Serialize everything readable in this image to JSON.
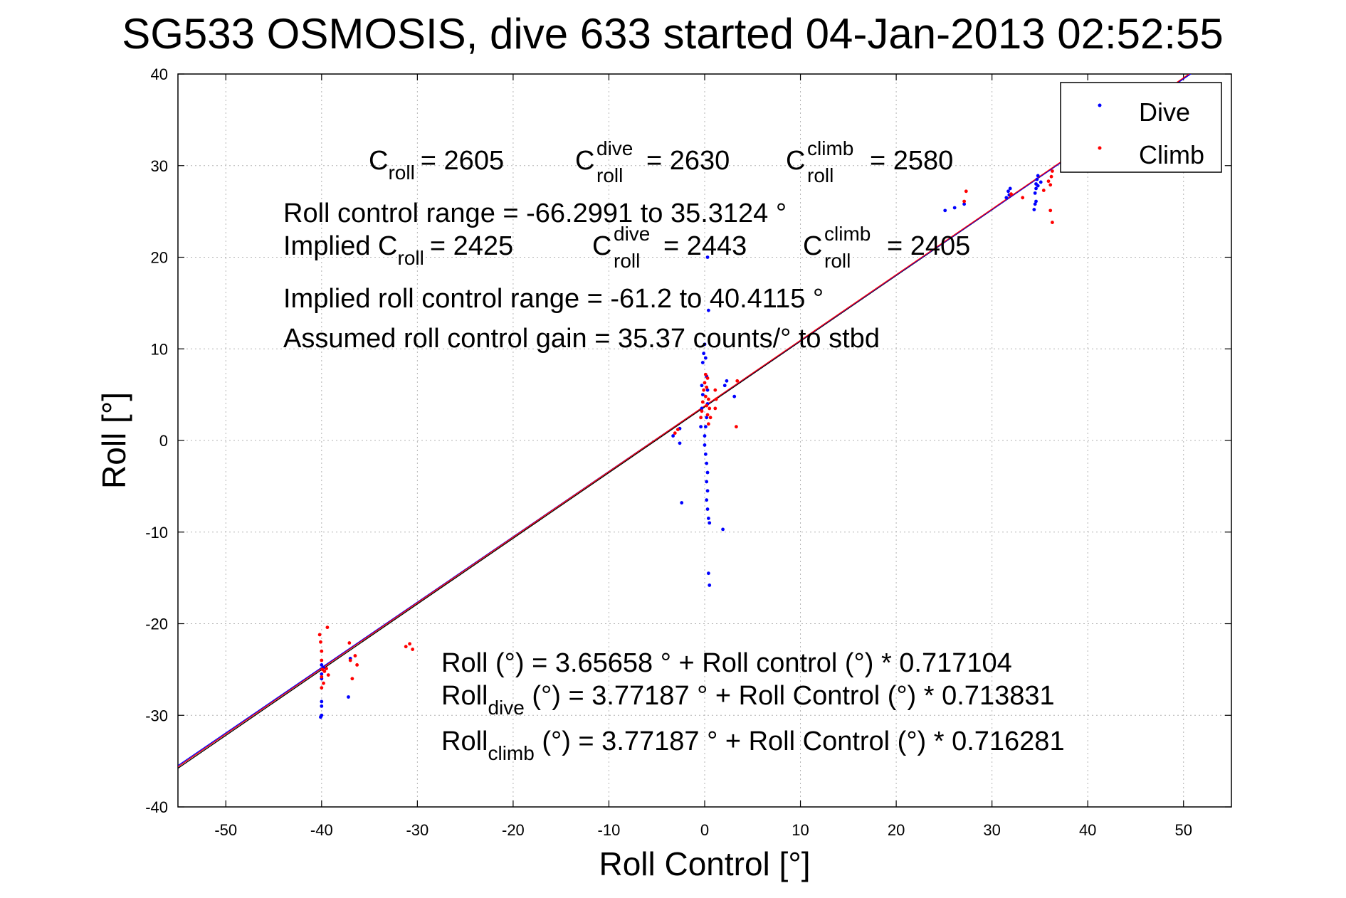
{
  "chart_data": {
    "type": "scatter",
    "title": "SG533 OSMOSIS, dive 633 started 04-Jan-2013 02:52:55",
    "xlabel": "Roll Control [°]",
    "ylabel": "Roll [°]",
    "xlim": [
      -55,
      55
    ],
    "ylim": [
      -40,
      40
    ],
    "x_ticks": [
      -50,
      -40,
      -30,
      -20,
      -10,
      0,
      10,
      20,
      30,
      40,
      50
    ],
    "y_ticks": [
      -40,
      -30,
      -20,
      -10,
      0,
      10,
      20,
      30,
      40
    ],
    "grid": true,
    "legend_position": "top-right",
    "series": [
      {
        "name": "Dive",
        "color": "#0000ff",
        "points": [
          [
            -40,
            -24.5
          ],
          [
            -40,
            -25.5
          ],
          [
            -40,
            -26
          ],
          [
            -40,
            -28.5
          ],
          [
            -40,
            -29
          ],
          [
            -40,
            -30
          ],
          [
            -40.1,
            -30.2
          ],
          [
            -39.8,
            -24.8
          ],
          [
            -37.2,
            -28
          ],
          [
            -37,
            -23.8
          ],
          [
            -3.3,
            0.5
          ],
          [
            -2.6,
            -0.3
          ],
          [
            -2.4,
            -6.8
          ],
          [
            -2.6,
            1.3
          ],
          [
            -0.4,
            1.5
          ],
          [
            -0.3,
            3.5
          ],
          [
            -0.2,
            5
          ],
          [
            -0.3,
            6
          ],
          [
            -0.2,
            8.5
          ],
          [
            -0.1,
            9.5
          ],
          [
            0,
            10.5
          ],
          [
            0.1,
            9
          ],
          [
            0.2,
            7
          ],
          [
            0.3,
            5.5
          ],
          [
            0.3,
            4
          ],
          [
            0.2,
            2.5
          ],
          [
            0.1,
            1.5
          ],
          [
            0,
            0.5
          ],
          [
            0,
            -0.5
          ],
          [
            0.1,
            -1.5
          ],
          [
            0.2,
            -2.5
          ],
          [
            0.3,
            -3.5
          ],
          [
            0.2,
            -4.5
          ],
          [
            0.3,
            -5.5
          ],
          [
            0.2,
            -6.5
          ],
          [
            0.3,
            -7.5
          ],
          [
            0.4,
            -8.5
          ],
          [
            0.5,
            -9
          ],
          [
            0.4,
            -14.5
          ],
          [
            0.5,
            -15.8
          ],
          [
            0.4,
            14.2
          ],
          [
            0.3,
            20
          ],
          [
            1.9,
            -9.7
          ],
          [
            2.3,
            6.5
          ],
          [
            2.1,
            6
          ],
          [
            3.1,
            4.8
          ],
          [
            25.1,
            25.1
          ],
          [
            26.1,
            25.4
          ],
          [
            27.1,
            25.8
          ],
          [
            31.5,
            26.5
          ],
          [
            31.7,
            27.2
          ],
          [
            31.8,
            26.8
          ],
          [
            31.9,
            27.5
          ],
          [
            34.4,
            25.2
          ],
          [
            34.5,
            25.8
          ],
          [
            34.5,
            27
          ],
          [
            34.6,
            27.5
          ],
          [
            34.6,
            28
          ],
          [
            34.7,
            28.5
          ],
          [
            34.8,
            27.8
          ],
          [
            34.6,
            26.1
          ],
          [
            34.8,
            28.9
          ],
          [
            35.1,
            28.2
          ]
        ]
      },
      {
        "name": "Climb",
        "color": "#ff0000",
        "points": [
          [
            -40.2,
            -21.2
          ],
          [
            -40.1,
            -22
          ],
          [
            -40,
            -23
          ],
          [
            -40,
            -24
          ],
          [
            -39.9,
            -25
          ],
          [
            -40,
            -25.8
          ],
          [
            -39.8,
            -26.5
          ],
          [
            -40,
            -27
          ],
          [
            -39.7,
            -25.2
          ],
          [
            -39.5,
            -24.9
          ],
          [
            -39.3,
            -25.6
          ],
          [
            -39.4,
            -20.4
          ],
          [
            -37.1,
            -22.1
          ],
          [
            -37,
            -24
          ],
          [
            -36.8,
            -26
          ],
          [
            -36.5,
            -23.5
          ],
          [
            -36.3,
            -24.5
          ],
          [
            -31.2,
            -22.5
          ],
          [
            -30.8,
            -22.2
          ],
          [
            -30.5,
            -22.8
          ],
          [
            -3.1,
            0.8
          ],
          [
            -2.8,
            1.2
          ],
          [
            -0.4,
            2.5
          ],
          [
            -0.3,
            3.2
          ],
          [
            -0.2,
            4.2
          ],
          [
            -0.1,
            5.5
          ],
          [
            0,
            6.3
          ],
          [
            0.1,
            4.8
          ],
          [
            0.2,
            3.8
          ],
          [
            0.3,
            2.8
          ],
          [
            0.4,
            1.8
          ],
          [
            0.2,
            5.8
          ],
          [
            0.1,
            7.2
          ],
          [
            0.3,
            6.8
          ],
          [
            0.4,
            4.5
          ],
          [
            0.5,
            3.5
          ],
          [
            0.6,
            2.5
          ],
          [
            1.1,
            5.5
          ],
          [
            1.2,
            4.5
          ],
          [
            1.1,
            3.5
          ],
          [
            3.3,
            1.5
          ],
          [
            3.4,
            6.5
          ],
          [
            27.3,
            27.2
          ],
          [
            27.1,
            26.1
          ],
          [
            32,
            26.9
          ],
          [
            33.2,
            26.5
          ],
          [
            35.4,
            27.3
          ],
          [
            35.9,
            28.3
          ],
          [
            36.1,
            27.9
          ],
          [
            36.2,
            28.8
          ],
          [
            36.3,
            29.4
          ],
          [
            36.1,
            25.1
          ],
          [
            36.3,
            23.8
          ]
        ]
      }
    ],
    "fit_lines": [
      {
        "intercept": 3.65658,
        "slope": 0.717104,
        "color": "#000000"
      },
      {
        "intercept": 3.77187,
        "slope": 0.713831,
        "color": "#0000ff"
      },
      {
        "intercept": 3.77187,
        "slope": 0.716281,
        "color": "#ff0000"
      }
    ],
    "annotations": {
      "c_roll_label": "C",
      "c_roll_sub": "roll",
      "c_roll_val": "= 2605",
      "c_dive_label": "C",
      "c_dive_sup": "dive",
      "c_dive_sub": "roll",
      "c_dive_val": "= 2630",
      "c_climb_label": "C",
      "c_climb_sup": "climb",
      "c_climb_sub": "roll",
      "c_climb_val": "= 2580",
      "range": "Roll control range = -66.2991 to 35.3124 °",
      "implied_c_label": "Implied C",
      "implied_c_sub": "roll",
      "implied_c_val": "= 2425",
      "implied_dive_label": "C",
      "implied_dive_sup": "dive",
      "implied_dive_sub": "roll",
      "implied_dive_val": "= 2443",
      "implied_climb_label": "C",
      "implied_climb_sup": "climb",
      "implied_climb_sub": "roll",
      "implied_climb_val": "= 2405",
      "implied_range": "Implied roll control range = -61.2 to 40.4115 °",
      "gain": "Assumed roll control gain = 35.37 counts/° to stbd",
      "eq_all": "Roll (°) = 3.65658 ° + Roll control (°) * 0.717104",
      "eq_dive_pre": "Roll",
      "eq_dive_sub": "dive",
      "eq_dive_post": " (°) = 3.77187 ° + Roll Control (°) * 0.713831",
      "eq_climb_pre": "Roll",
      "eq_climb_sub": "climb",
      "eq_climb_post": " (°) = 3.77187 ° + Roll Control (°) * 0.716281"
    }
  }
}
